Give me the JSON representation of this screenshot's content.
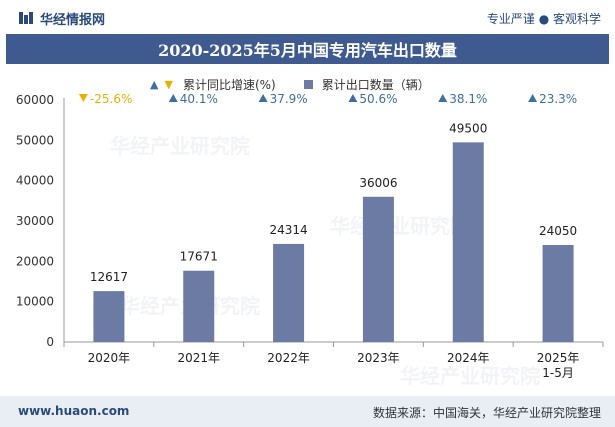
{
  "header": {
    "brand": "华经情报网",
    "tagline": "专业严谨 ● 客观科学"
  },
  "title": "2020-2025年5月中国专用汽车出口数量",
  "legend": {
    "growth_label": "累计同比增速(%)",
    "exports_label": "累计出口数量（辆）"
  },
  "watermark": "华经产业研究院",
  "footer": {
    "website": "www.huaon.com",
    "source": "数据来源：中国海关，华经产业研究院整理"
  },
  "colors": {
    "bar": "#6b7ba3",
    "up": "#3f6fa0",
    "down": "#e8b100",
    "title_bg": "#3f5a8e"
  },
  "chart_data": {
    "type": "bar",
    "categories": [
      "2020年",
      "2021年",
      "2022年",
      "2023年",
      "2024年",
      "2025年\n1-5月"
    ],
    "series": [
      {
        "name": "累计出口数量（辆）",
        "values": [
          12617,
          17671,
          24314,
          36006,
          49500,
          24050
        ]
      },
      {
        "name": "累计同比增速(%)",
        "values": [
          -25.6,
          40.1,
          37.9,
          50.6,
          38.1,
          23.3
        ]
      }
    ],
    "growth_labels": [
      "-25.6%",
      "40.1%",
      "37.9%",
      "50.6%",
      "38.1%",
      "23.3%"
    ],
    "value_labels": [
      "12617",
      "17671",
      "24314",
      "36006",
      "49500",
      "24050"
    ],
    "yticks": [
      "0",
      "10000",
      "20000",
      "30000",
      "40000",
      "50000",
      "60000"
    ],
    "ylim": [
      0,
      60000
    ],
    "grid": false
  }
}
